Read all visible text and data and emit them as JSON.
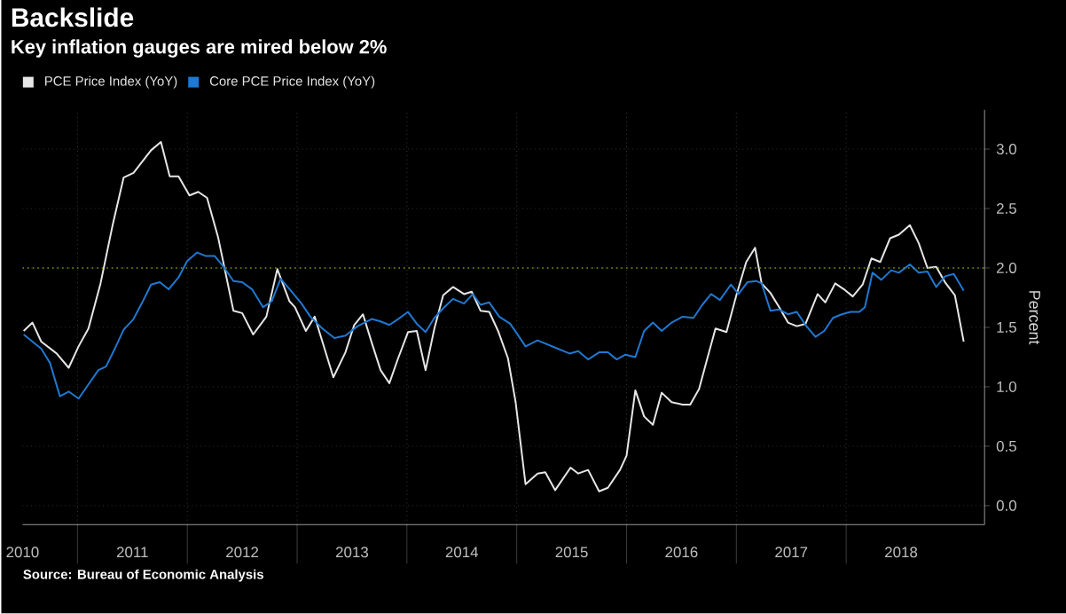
{
  "chart_data": {
    "type": "line",
    "title": "Backslide",
    "subtitle": "Key inflation gauges are mired below 2%",
    "ylabel": "Percent",
    "annotations": [
      "Source: Bureau of Economic Analysis"
    ],
    "legend": "top left",
    "grid": true,
    "marker": "none",
    "line_style": "solid",
    "xlim": [
      2010.5,
      2019.26
    ],
    "xticks": [
      {
        "value": 2010.5,
        "label": "2010"
      },
      {
        "value": 2011,
        "label": null
      },
      {
        "value": 2011.5,
        "label": "2011"
      },
      {
        "value": 2012,
        "label": null
      },
      {
        "value": 2012.5,
        "label": "2012"
      },
      {
        "value": 2013,
        "label": null
      },
      {
        "value": 2013.5,
        "label": "2013"
      },
      {
        "value": 2014,
        "label": null
      },
      {
        "value": 2014.5,
        "label": "2014"
      },
      {
        "value": 2015,
        "label": null
      },
      {
        "value": 2015.5,
        "label": "2015"
      },
      {
        "value": 2016,
        "label": null
      },
      {
        "value": 2016.5,
        "label": "2016"
      },
      {
        "value": 2017,
        "label": null
      },
      {
        "value": 2017.5,
        "label": "2017"
      },
      {
        "value": 2018,
        "label": null
      },
      {
        "value": 2018.5,
        "label": "2018"
      }
    ],
    "ylim": [
      -0.16,
      3.33
    ],
    "yticks": [
      {
        "value": 0,
        "label": "0.0"
      },
      {
        "value": 0.5,
        "label": "0.5"
      },
      {
        "value": 1,
        "label": "1.0"
      },
      {
        "value": 1.5,
        "label": "1.5"
      },
      {
        "value": 2,
        "label": "2.0"
      },
      {
        "value": 2.5,
        "label": "2.5"
      },
      {
        "value": 3,
        "label": "3.0"
      }
    ],
    "ref_lines": [
      {
        "axis": "y",
        "value": 2,
        "color": "#7a9a00",
        "line_style": "dotted"
      }
    ],
    "series": [
      {
        "name": "PCE Price Index (YoY)",
        "color": "#e6e6e6",
        "x": [
          2010.51,
          2010.59,
          2010.67,
          2010.81,
          2010.92,
          2011.01,
          2011.1,
          2011.21,
          2011.32,
          2011.42,
          2011.51,
          2011.67,
          2011.76,
          2011.84,
          2011.92,
          2012.02,
          2012.1,
          2012.18,
          2012.28,
          2012.42,
          2012.5,
          2012.6,
          2012.72,
          2012.82,
          2012.93,
          2012.98,
          2013.08,
          2013.16,
          2013.25,
          2013.33,
          2013.44,
          2013.52,
          2013.6,
          2013.68,
          2013.76,
          2013.84,
          2013.92,
          2014.01,
          2014.09,
          2014.17,
          2014.25,
          2014.33,
          2014.42,
          2014.52,
          2014.59,
          2014.67,
          2014.75,
          2014.83,
          2014.92,
          2014.99,
          2015.08,
          2015.19,
          2015.26,
          2015.35,
          2015.49,
          2015.56,
          2015.65,
          2015.75,
          2015.83,
          2015.94,
          2016.0,
          2016.08,
          2016.16,
          2016.24,
          2016.32,
          2016.41,
          2016.51,
          2016.58,
          2016.66,
          2016.73,
          2016.81,
          2016.91,
          2017.0,
          2017.09,
          2017.17,
          2017.23,
          2017.31,
          2017.39,
          2017.47,
          2017.55,
          2017.63,
          2017.74,
          2017.81,
          2017.9,
          2017.98,
          2018.06,
          2018.15,
          2018.23,
          2018.31,
          2018.4,
          2018.48,
          2018.58,
          2018.66,
          2018.74,
          2018.82,
          2018.9,
          2018.99,
          2019.07
        ],
        "values": [
          1.47,
          1.54,
          1.38,
          1.28,
          1.16,
          1.34,
          1.49,
          1.87,
          2.36,
          2.76,
          2.8,
          2.99,
          3.06,
          2.77,
          2.77,
          2.61,
          2.64,
          2.59,
          2.26,
          1.64,
          1.62,
          1.44,
          1.59,
          1.99,
          1.72,
          1.67,
          1.47,
          1.59,
          1.32,
          1.08,
          1.29,
          1.52,
          1.61,
          1.37,
          1.14,
          1.03,
          1.24,
          1.46,
          1.47,
          1.14,
          1.49,
          1.77,
          1.84,
          1.78,
          1.8,
          1.64,
          1.63,
          1.47,
          1.24,
          0.87,
          0.18,
          0.27,
          0.28,
          0.13,
          0.32,
          0.27,
          0.3,
          0.12,
          0.15,
          0.3,
          0.42,
          0.97,
          0.75,
          0.68,
          0.95,
          0.87,
          0.85,
          0.85,
          0.98,
          1.22,
          1.49,
          1.46,
          1.77,
          2.05,
          2.17,
          1.87,
          1.79,
          1.67,
          1.54,
          1.51,
          1.53,
          1.78,
          1.71,
          1.87,
          1.82,
          1.76,
          1.86,
          2.08,
          2.05,
          2.25,
          2.28,
          2.36,
          2.21,
          2.0,
          2.01,
          1.88,
          1.77,
          1.38
        ]
      },
      {
        "name": "Core PCE Price Index (YoY)",
        "color": "#1f78d1",
        "x": [
          2010.51,
          2010.67,
          2010.75,
          2010.84,
          2010.92,
          2011.01,
          2011.1,
          2011.19,
          2011.26,
          2011.34,
          2011.42,
          2011.51,
          2011.59,
          2011.67,
          2011.75,
          2011.83,
          2011.92,
          2012.0,
          2012.09,
          2012.17,
          2012.25,
          2012.33,
          2012.42,
          2012.5,
          2012.59,
          2012.69,
          2012.77,
          2012.85,
          2012.96,
          2013.04,
          2013.12,
          2013.23,
          2013.34,
          2013.44,
          2013.55,
          2013.68,
          2013.76,
          2013.84,
          2013.92,
          2014.01,
          2014.09,
          2014.17,
          2014.25,
          2014.33,
          2014.42,
          2014.52,
          2014.6,
          2014.67,
          2014.75,
          2014.84,
          2014.94,
          2015.0,
          2015.08,
          2015.19,
          2015.35,
          2015.48,
          2015.56,
          2015.65,
          2015.75,
          2015.83,
          2015.91,
          2015.99,
          2016.08,
          2016.16,
          2016.24,
          2016.32,
          2016.41,
          2016.51,
          2016.61,
          2016.69,
          2016.77,
          2016.85,
          2016.95,
          2017.02,
          2017.1,
          2017.18,
          2017.23,
          2017.31,
          2017.39,
          2017.47,
          2017.55,
          2017.63,
          2017.72,
          2017.8,
          2017.88,
          2017.96,
          2018.04,
          2018.12,
          2018.17,
          2018.24,
          2018.32,
          2018.41,
          2018.48,
          2018.58,
          2018.66,
          2018.74,
          2018.82,
          2018.9,
          2018.98,
          2019.07
        ],
        "values": [
          1.44,
          1.32,
          1.2,
          0.92,
          0.96,
          0.9,
          1.02,
          1.14,
          1.17,
          1.32,
          1.48,
          1.57,
          1.71,
          1.86,
          1.88,
          1.82,
          1.92,
          2.06,
          2.13,
          2.1,
          2.1,
          2.01,
          1.89,
          1.88,
          1.82,
          1.67,
          1.72,
          1.91,
          1.79,
          1.7,
          1.59,
          1.49,
          1.41,
          1.43,
          1.51,
          1.57,
          1.55,
          1.52,
          1.57,
          1.63,
          1.53,
          1.46,
          1.58,
          1.66,
          1.74,
          1.7,
          1.78,
          1.69,
          1.71,
          1.59,
          1.53,
          1.45,
          1.34,
          1.39,
          1.33,
          1.28,
          1.3,
          1.23,
          1.29,
          1.29,
          1.23,
          1.27,
          1.25,
          1.47,
          1.54,
          1.47,
          1.54,
          1.59,
          1.58,
          1.69,
          1.78,
          1.73,
          1.86,
          1.78,
          1.88,
          1.89,
          1.87,
          1.64,
          1.65,
          1.61,
          1.63,
          1.52,
          1.42,
          1.47,
          1.58,
          1.61,
          1.63,
          1.63,
          1.67,
          1.96,
          1.9,
          1.98,
          1.96,
          2.03,
          1.96,
          1.97,
          1.84,
          1.93,
          1.95,
          1.81
        ]
      }
    ]
  }
}
